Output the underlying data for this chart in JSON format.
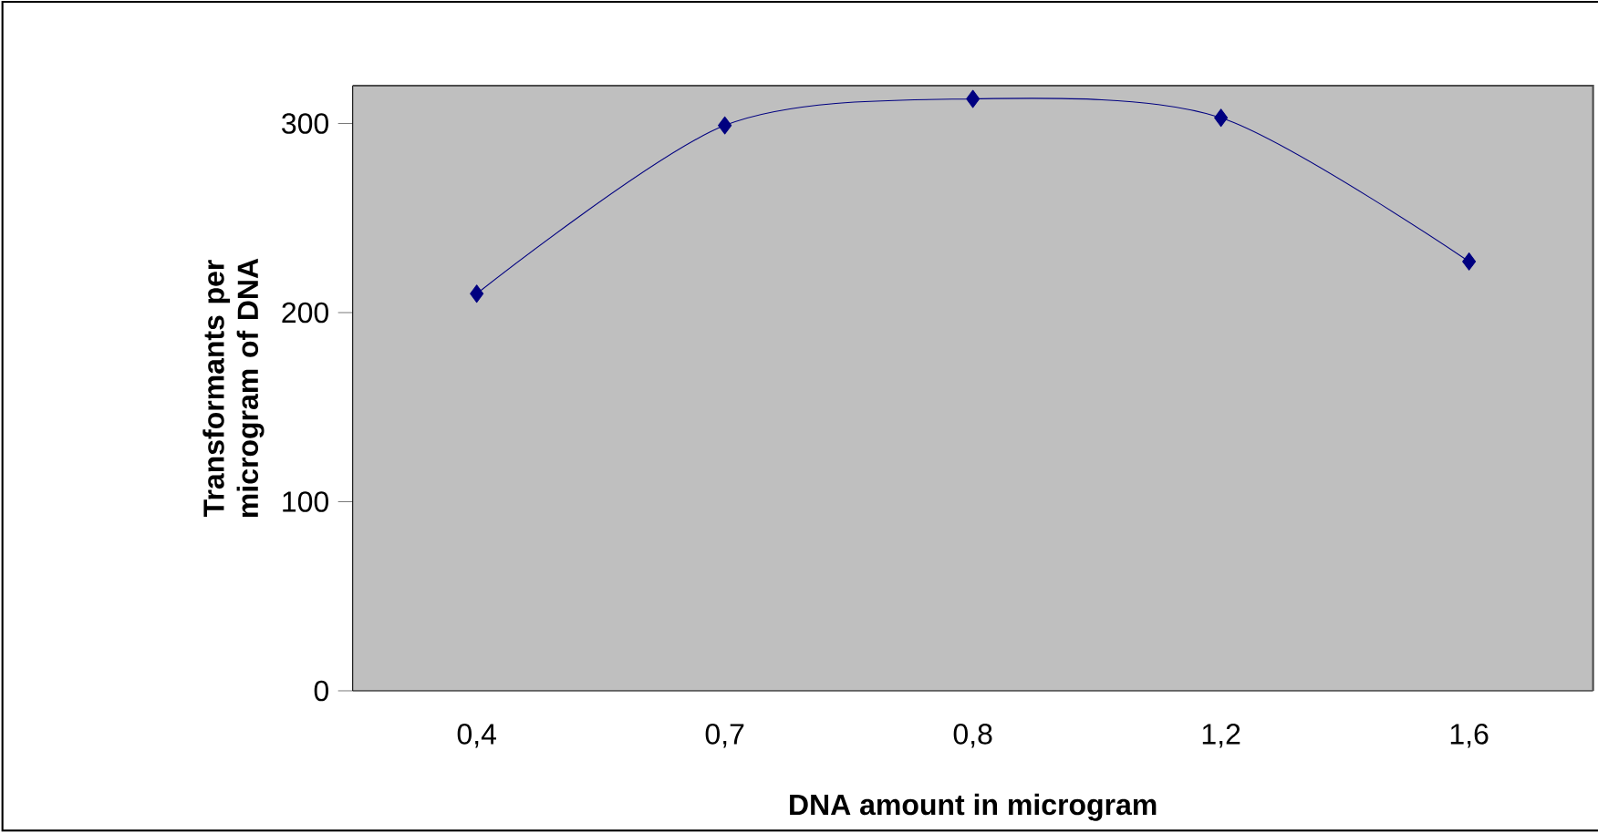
{
  "chart_data": {
    "type": "line",
    "xlabel": "DNA amount in microgram",
    "ylabel": "Transformants per microgram of DNA",
    "categories": [
      "0,4",
      "0,7",
      "0,8",
      "1,2",
      "1,6"
    ],
    "series": [
      {
        "color": "#000080",
        "values": [
          210,
          299,
          313,
          303,
          227
        ]
      }
    ],
    "ylim": [
      0,
      320
    ],
    "yticks": [
      0,
      100,
      200,
      300
    ],
    "marker": "diamond",
    "line_style": "solid",
    "grid": false
  }
}
